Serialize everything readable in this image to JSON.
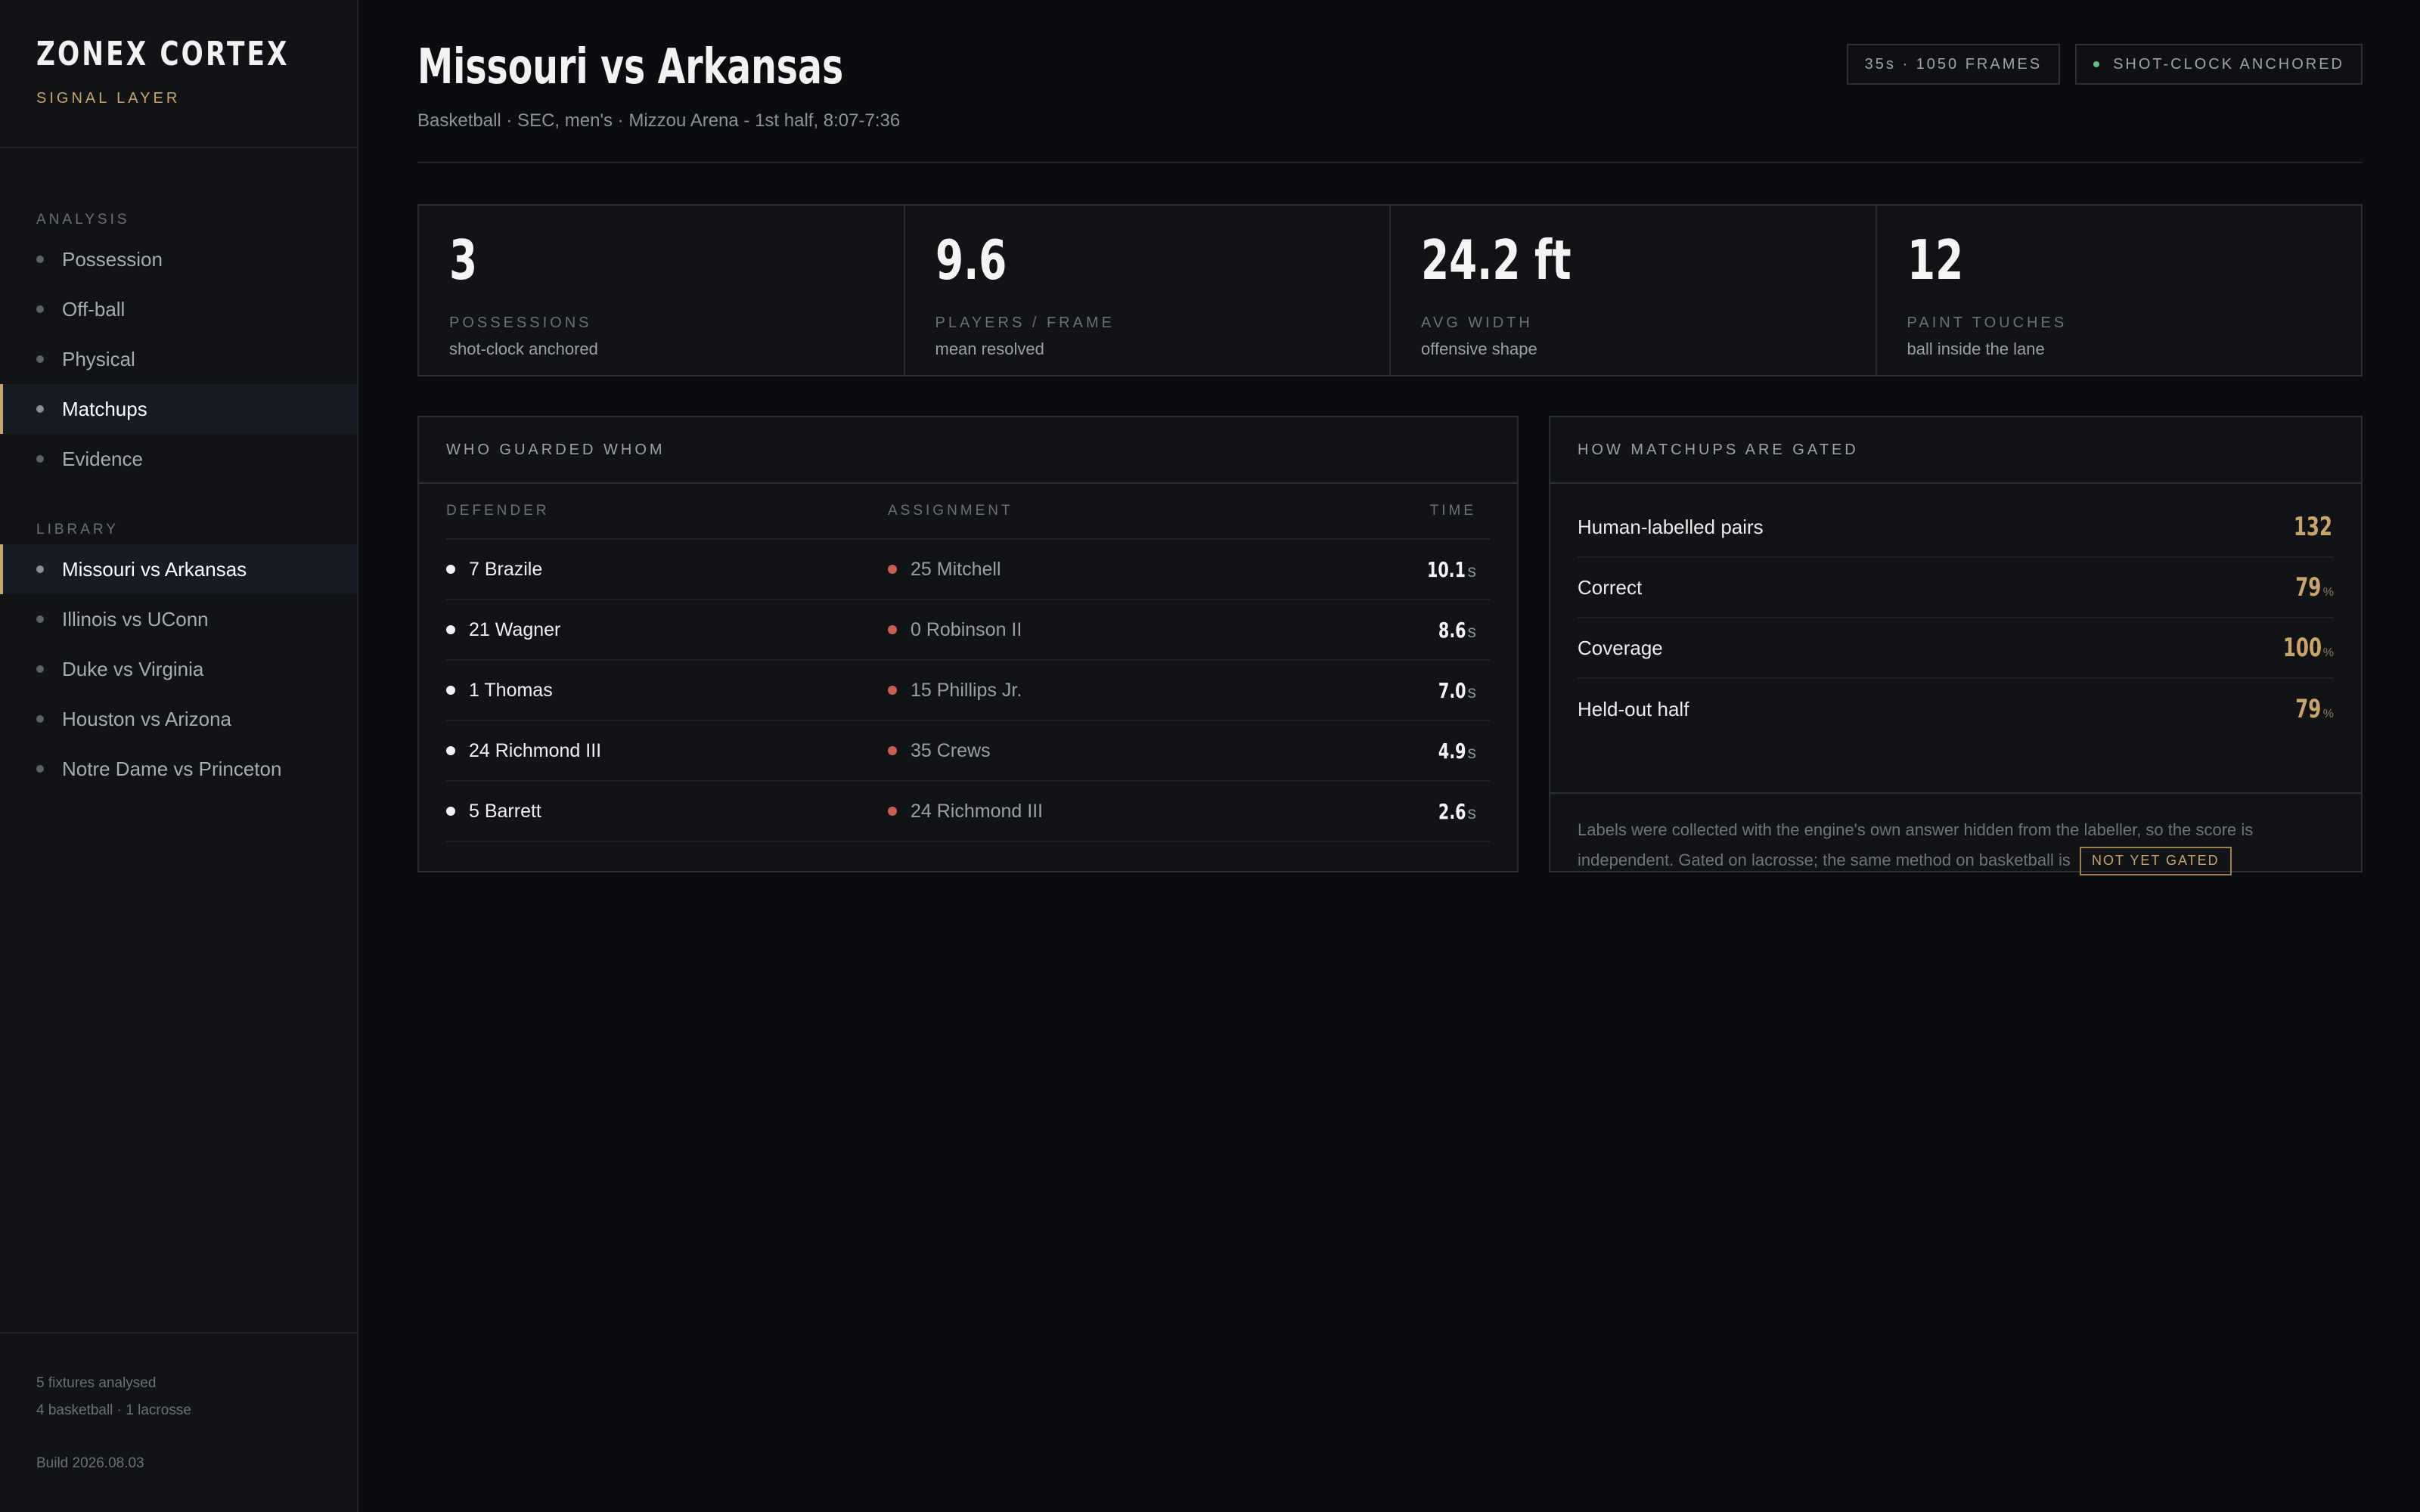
{
  "brand": {
    "title": "ZONEX CORTEX",
    "subtitle": "SIGNAL LAYER"
  },
  "sidebar": {
    "analysis_label": "ANALYSIS",
    "analysis_items": [
      {
        "label": "Possession"
      },
      {
        "label": "Off-ball"
      },
      {
        "label": "Physical"
      },
      {
        "label": "Matchups",
        "active": true
      },
      {
        "label": "Evidence"
      }
    ],
    "library_label": "LIBRARY",
    "library_items": [
      {
        "label": "Missouri vs Arkansas",
        "active": true
      },
      {
        "label": "Illinois vs UConn"
      },
      {
        "label": "Duke vs Virginia"
      },
      {
        "label": "Houston vs Arizona"
      },
      {
        "label": "Notre Dame vs Princeton"
      }
    ],
    "footer": {
      "fixtures": "5 fixtures analysed",
      "breakdown": "4 basketball · 1 lacrosse",
      "build": "Build 2026.08.03"
    }
  },
  "header": {
    "title": "Missouri vs Arkansas",
    "subtitle": "Basketball · SEC, men's · Mizzou Arena - 1st half, 8:07-7:36",
    "badge_frames": "35s · 1050 FRAMES",
    "badge_anchor": "SHOT-CLOCK ANCHORED"
  },
  "stats": [
    {
      "value": "3",
      "label": "POSSESSIONS",
      "note": "shot-clock anchored"
    },
    {
      "value": "9.6",
      "label": "PLAYERS / FRAME",
      "note": "mean resolved"
    },
    {
      "value": "24.2 ft",
      "label": "AVG WIDTH",
      "note": "offensive shape"
    },
    {
      "value": "12",
      "label": "PAINT TOUCHES",
      "note": "ball inside the lane"
    }
  ],
  "matchups": {
    "title": "WHO GUARDED WHOM",
    "columns": {
      "defender": "DEFENDER",
      "assignment": "ASSIGNMENT",
      "time": "TIME"
    },
    "time_unit": "s",
    "rows": [
      {
        "defender": "7 Brazile",
        "assignment": "25 Mitchell",
        "time": "10.1"
      },
      {
        "defender": "21 Wagner",
        "assignment": "0 Robinson II",
        "time": "8.6"
      },
      {
        "defender": "1 Thomas",
        "assignment": "15 Phillips Jr.",
        "time": "7.0"
      },
      {
        "defender": "24 Richmond III",
        "assignment": "35 Crews",
        "time": "4.9"
      },
      {
        "defender": "5 Barrett",
        "assignment": "24 Richmond III",
        "time": "2.6"
      }
    ]
  },
  "gating": {
    "title": "HOW MATCHUPS ARE GATED",
    "rows": [
      {
        "label": "Human-labelled pairs",
        "value": "132",
        "unit": ""
      },
      {
        "label": "Correct",
        "value": "79",
        "unit": "%"
      },
      {
        "label": "Coverage",
        "value": "100",
        "unit": "%"
      },
      {
        "label": "Held-out half",
        "value": "79",
        "unit": "%"
      }
    ],
    "note": "Labels were collected with the engine's own answer hidden from the labeller, so the score is independent. Gated on lacrosse; the same method on basketball is",
    "tag": "NOT YET GATED"
  },
  "colors": {
    "accent": "#c9a46b",
    "assignment_dot": "#c9604c",
    "status_dot": "#5fbf7a",
    "background": "#0b0c0f"
  }
}
